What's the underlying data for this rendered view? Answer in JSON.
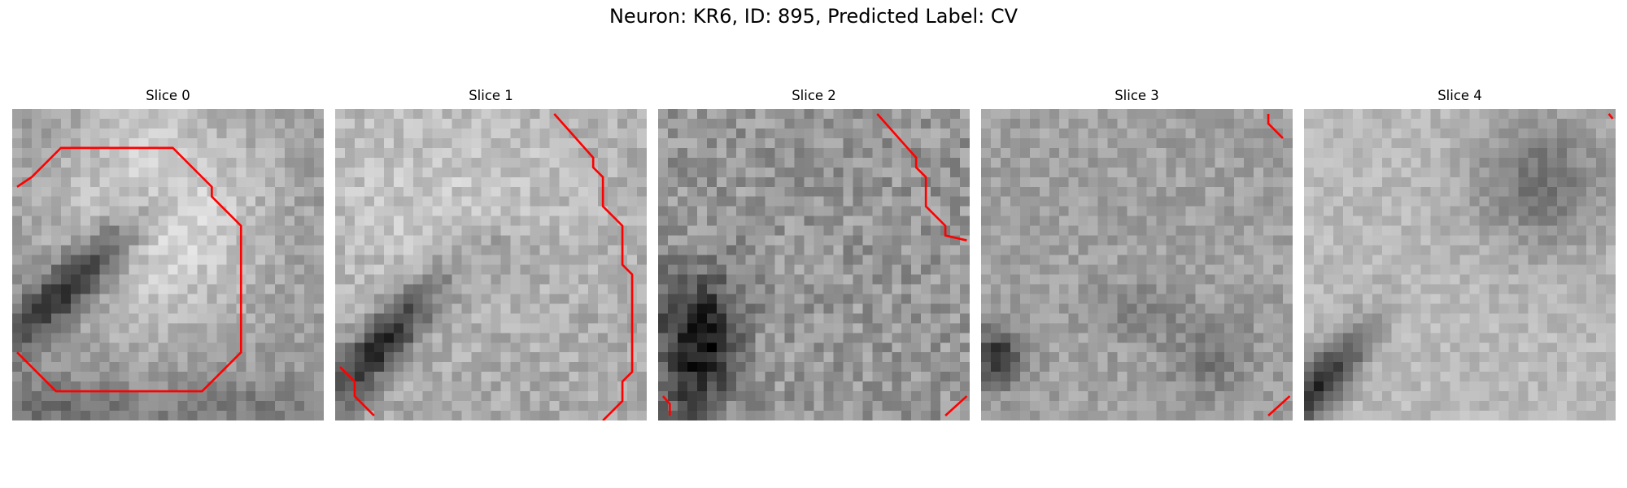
{
  "figure": {
    "title": "Neuron: KR6, ID: 895, Predicted Label: CV"
  },
  "colors": {
    "contour": "#ff0000",
    "colormap": "gray"
  },
  "slices": [
    {
      "title": "Slice 0"
    },
    {
      "title": "Slice 1"
    },
    {
      "title": "Slice 2"
    },
    {
      "title": "Slice 3"
    },
    {
      "title": "Slice 4"
    }
  ]
}
